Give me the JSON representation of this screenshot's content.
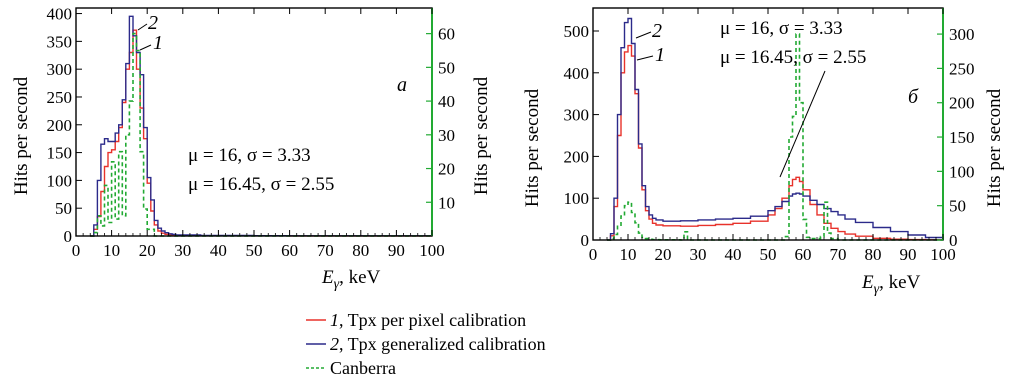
{
  "chart_data": [
    {
      "type": "line",
      "panel_letter": "а",
      "xlabel_symbol": "E",
      "xlabel_sub": "γ",
      "xlabel_unit": ", keV",
      "ylabel_left": "Hits per second",
      "ylabel_right": "Hits per second",
      "xlim": [
        0,
        100
      ],
      "ylim_left": [
        0,
        410
      ],
      "ylim_right": [
        0,
        67.6
      ],
      "x_ticks": [
        0,
        10,
        20,
        30,
        40,
        50,
        60,
        70,
        80,
        90,
        100
      ],
      "y_ticks_left": [
        0,
        50,
        100,
        150,
        200,
        250,
        300,
        350,
        400
      ],
      "y_ticks_right": [
        10,
        20,
        30,
        40,
        50,
        60
      ],
      "annotations": [
        "μ = 16, σ = 3.33",
        "μ = 16.45, σ = 2.55"
      ],
      "curve_labels": [
        "1",
        "2"
      ],
      "series": [
        {
          "name": "1",
          "axis": "left",
          "color": "#e8322b",
          "x": [
            4,
            5,
            6,
            7,
            8,
            9,
            10,
            11,
            12,
            13,
            14,
            15,
            16,
            17,
            18,
            19,
            20,
            21,
            22,
            23,
            24,
            25,
            26,
            27,
            28,
            30,
            35,
            40,
            50,
            60,
            100
          ],
          "y": [
            0,
            12,
            35,
            80,
            125,
            150,
            155,
            170,
            195,
            240,
            300,
            330,
            370,
            300,
            230,
            175,
            95,
            45,
            20,
            9,
            5,
            3,
            2,
            2,
            1,
            1,
            0.5,
            0.5,
            0.3,
            0.2,
            0
          ]
        },
        {
          "name": "2",
          "axis": "left",
          "color": "#2b2a8a",
          "x": [
            4,
            5,
            6,
            7,
            8,
            9,
            10,
            11,
            12,
            13,
            14,
            15,
            16,
            17,
            18,
            19,
            20,
            21,
            22,
            23,
            24,
            25,
            26,
            27,
            28,
            30,
            35,
            40,
            50,
            60,
            100
          ],
          "y": [
            0,
            20,
            100,
            165,
            175,
            170,
            170,
            185,
            200,
            245,
            310,
            395,
            360,
            330,
            290,
            195,
            105,
            65,
            28,
            14,
            9,
            6,
            4,
            3,
            2,
            2,
            1,
            1,
            0.5,
            0.3,
            0
          ]
        },
        {
          "name": "Canberra",
          "axis": "right",
          "color": "#22aa33",
          "x": [
            4,
            5,
            6,
            7,
            8,
            9,
            10,
            11,
            12,
            13,
            14,
            15,
            16,
            17,
            18,
            19,
            20,
            22,
            100
          ],
          "y": [
            0,
            1,
            6,
            3,
            15,
            4,
            22,
            5,
            25,
            6,
            30,
            40,
            60,
            55,
            25,
            8,
            2,
            0,
            0
          ]
        }
      ]
    },
    {
      "type": "line",
      "panel_letter": "б",
      "xlabel_symbol": "E",
      "xlabel_sub": "γ",
      "xlabel_unit": ", keV",
      "ylabel_left": "Hits per second",
      "ylabel_right": "Hits per second",
      "xlim": [
        0,
        100
      ],
      "ylim_left": [
        0,
        555
      ],
      "ylim_right": [
        0,
        338
      ],
      "x_ticks": [
        0,
        10,
        20,
        30,
        40,
        50,
        60,
        70,
        80,
        90,
        100
      ],
      "y_ticks_left": [
        0,
        100,
        200,
        300,
        400,
        500
      ],
      "y_ticks_right": [
        0,
        50,
        100,
        150,
        200,
        250,
        300
      ],
      "annotations": [
        "μ = 16, σ = 3.33",
        "μ = 16.45, σ = 2.55"
      ],
      "curve_labels": [
        "1",
        "2"
      ],
      "series": [
        {
          "name": "1",
          "axis": "left",
          "color": "#e8322b",
          "x": [
            4,
            5,
            6,
            7,
            8,
            9,
            10,
            11,
            12,
            13,
            14,
            15,
            16,
            17,
            18,
            20,
            25,
            30,
            35,
            40,
            45,
            50,
            52,
            54,
            56,
            57,
            58,
            59,
            60,
            62,
            64,
            66,
            68,
            70,
            72,
            75,
            80,
            85,
            90,
            95,
            100
          ],
          "y": [
            0,
            10,
            80,
            250,
            400,
            450,
            465,
            440,
            350,
            220,
            120,
            70,
            50,
            40,
            36,
            34,
            33,
            35,
            37,
            40,
            45,
            60,
            75,
            100,
            130,
            145,
            150,
            140,
            120,
            85,
            60,
            40,
            28,
            20,
            14,
            9,
            4,
            2,
            1,
            0.5,
            0
          ]
        },
        {
          "name": "2",
          "axis": "left",
          "color": "#2b2a8a",
          "x": [
            4,
            5,
            6,
            7,
            8,
            9,
            10,
            11,
            12,
            13,
            14,
            15,
            16,
            17,
            18,
            20,
            25,
            30,
            35,
            40,
            45,
            50,
            52,
            54,
            56,
            57,
            58,
            59,
            60,
            62,
            64,
            66,
            68,
            70,
            72,
            75,
            80,
            85,
            90,
            95,
            100
          ],
          "y": [
            0,
            15,
            100,
            300,
            460,
            520,
            530,
            470,
            360,
            230,
            130,
            80,
            60,
            52,
            48,
            45,
            46,
            48,
            50,
            52,
            57,
            70,
            80,
            92,
            105,
            110,
            112,
            110,
            105,
            95,
            85,
            75,
            68,
            60,
            50,
            42,
            30,
            20,
            12,
            6,
            2
          ]
        },
        {
          "name": "Canberra",
          "axis": "right",
          "color": "#22aa33",
          "x": [
            4,
            5,
            6,
            7,
            8,
            9,
            10,
            11,
            12,
            13,
            14,
            15,
            16,
            17,
            18,
            19,
            20,
            25,
            26,
            27,
            30,
            40,
            50,
            55,
            56,
            57,
            58,
            59,
            60,
            61,
            62,
            65,
            66,
            67,
            68,
            70,
            75,
            100
          ],
          "y": [
            0,
            2,
            8,
            20,
            35,
            50,
            55,
            40,
            25,
            10,
            4,
            2,
            1,
            0.5,
            0.5,
            0.3,
            0.3,
            0,
            12,
            0,
            0,
            0,
            0,
            5,
            150,
            180,
            300,
            200,
            30,
            4,
            2,
            5,
            55,
            10,
            2,
            0,
            0,
            0
          ]
        }
      ]
    }
  ],
  "legend": [
    {
      "num": "1",
      "label": ", Tpx per pixel calibration",
      "color": "#e8322b",
      "dash": "solid"
    },
    {
      "num": "2",
      "label": ", Tpx generalized calibration",
      "color": "#2b2a8a",
      "dash": "solid"
    },
    {
      "num": "",
      "label": "Canberra",
      "color": "#22aa33",
      "dash": "dashed"
    }
  ]
}
